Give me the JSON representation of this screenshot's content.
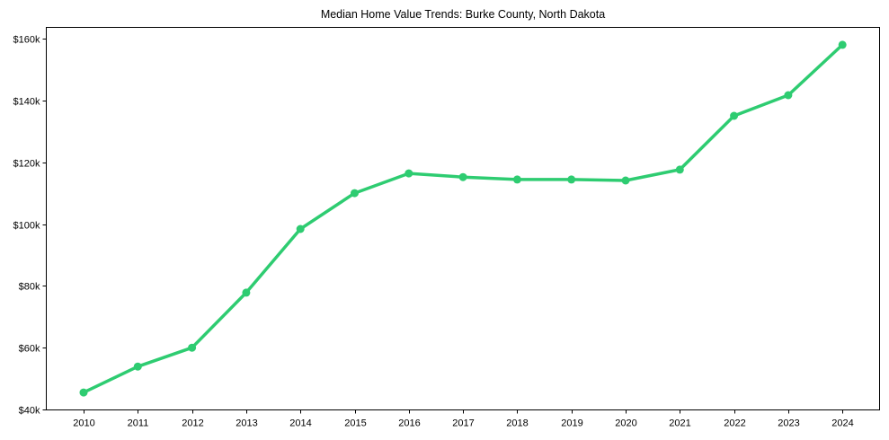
{
  "chart_data": {
    "type": "line",
    "title": "Median Home Value Trends: Burke County, North Dakota",
    "xlabel": "",
    "ylabel": "",
    "categories": [
      "2010",
      "2011",
      "2012",
      "2013",
      "2014",
      "2015",
      "2016",
      "2017",
      "2018",
      "2019",
      "2020",
      "2021",
      "2022",
      "2023",
      "2024"
    ],
    "series": [
      {
        "name": "Median Home Value",
        "color": "#2ecc71",
        "values": [
          45500,
          53900,
          60000,
          77800,
          98400,
          110000,
          116400,
          115200,
          114400,
          114400,
          114100,
          117600,
          135000,
          141700,
          158000
        ]
      }
    ],
    "yticks": [
      40000,
      60000,
      80000,
      100000,
      120000,
      140000,
      160000
    ],
    "ytick_labels": [
      "$40k",
      "$60k",
      "$80k",
      "$100k",
      "$120k",
      "$140k",
      "$160k"
    ],
    "ylim": [
      40000,
      163000
    ],
    "grid": false,
    "legend": null,
    "markers": true
  }
}
